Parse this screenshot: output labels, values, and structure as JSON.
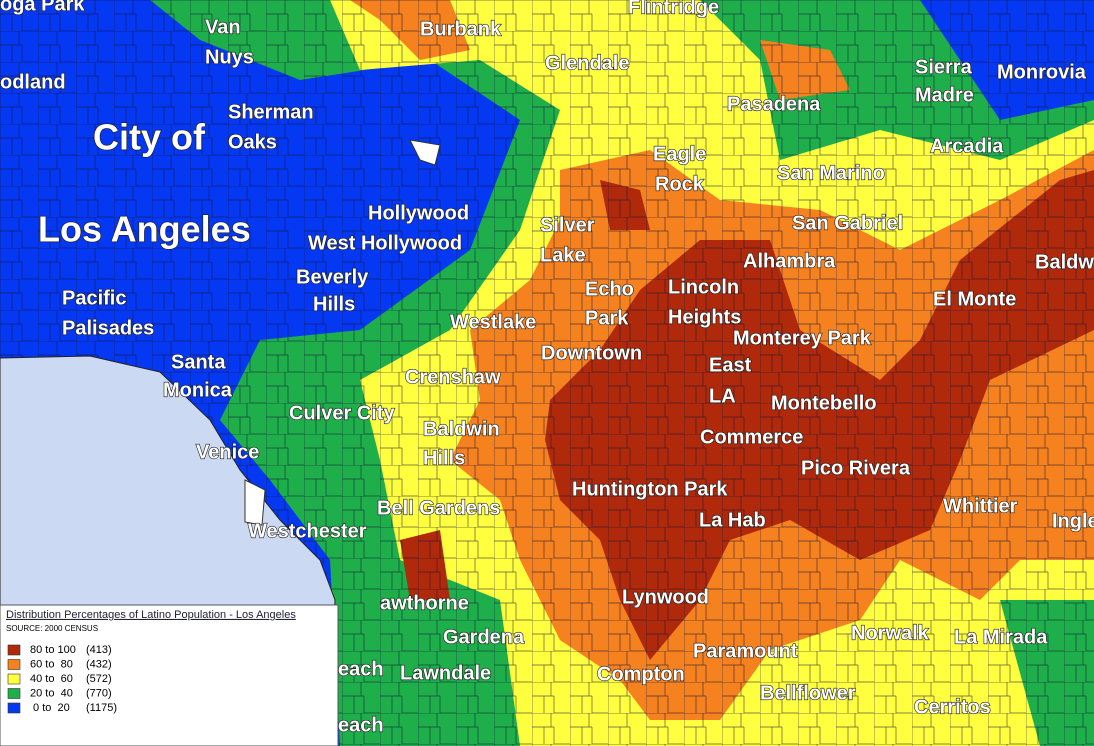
{
  "map": {
    "places": [
      "oga Park",
      "Van",
      "Nuys",
      "Burbank",
      "Flintridge",
      "Glendale",
      "Sierra",
      "Madre",
      "Monrovia",
      "odland",
      "Sherman",
      "Oaks",
      "City of",
      "Pasadena",
      "Arcadia",
      "Eagle",
      "Rock",
      "San Marino",
      "Hollywood",
      "Silver",
      "Lake",
      "San Gabriel",
      "Los Angeles",
      "West Hollywood",
      "Alhambra",
      "Baldw",
      "Beverly",
      "Hills",
      "Echo",
      "Park",
      "Lincoln",
      "Heights",
      "El Monte",
      "Pacific",
      "Palisades",
      "Westlake",
      "Downtown",
      "Monterey Park",
      "Santa",
      "Monica",
      "East",
      "LA",
      "Crenshaw",
      "Montebello",
      "Culver City",
      "Baldwin",
      "Hills",
      "Commerce",
      "Venice",
      "Pico Rivera",
      "Huntington Park",
      "Whittier",
      "Inglewood",
      "Bell Gardens",
      "La Hab",
      "Westchester",
      "Lynwood",
      "awthorne",
      "Gardena",
      "Norwalk",
      "La Mirada",
      "Paramount",
      "each",
      "Lawndale",
      "Compton",
      "Bellflower",
      "Cerritos",
      "each"
    ],
    "legend": {
      "title": "Distribution Percentages of Latino Population - Los Angeles",
      "source": "SOURCE: 2000 CENSUS",
      "entries": [
        {
          "range": "80 to 100",
          "count": "(413)",
          "color": "#b0290b"
        },
        {
          "range": "60 to  80",
          "count": "(432)",
          "color": "#f5811f"
        },
        {
          "range": "40 to  60",
          "count": "(572)",
          "color": "#ffff40"
        },
        {
          "range": "20 to  40",
          "count": "(770)",
          "color": "#1eae4a"
        },
        {
          "range": " 0 to  20",
          "count": "(1175)",
          "color": "#0538f2"
        }
      ]
    }
  }
}
